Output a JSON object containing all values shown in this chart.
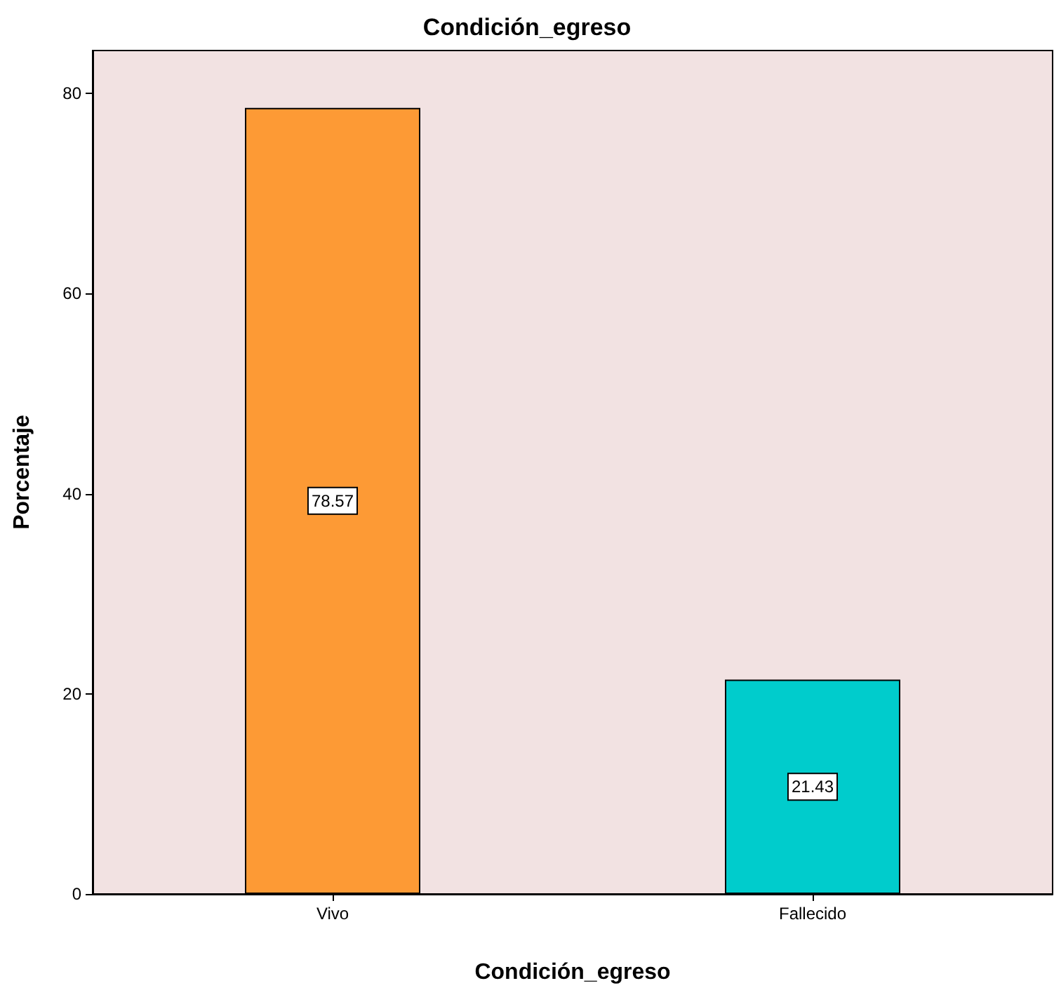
{
  "chart_data": {
    "type": "bar",
    "title": "Condición_egreso",
    "xlabel": "Condición_egreso",
    "ylabel": "Porcentaje",
    "categories": [
      "Vivo",
      "Fallecido"
    ],
    "values": [
      78.57,
      21.43
    ],
    "colors": [
      "#fd9a35",
      "#00cccc"
    ],
    "ylim": [
      0,
      84.3
    ],
    "yticks": [
      0,
      20,
      40,
      60,
      80
    ],
    "data_labels": true,
    "grid": false
  }
}
